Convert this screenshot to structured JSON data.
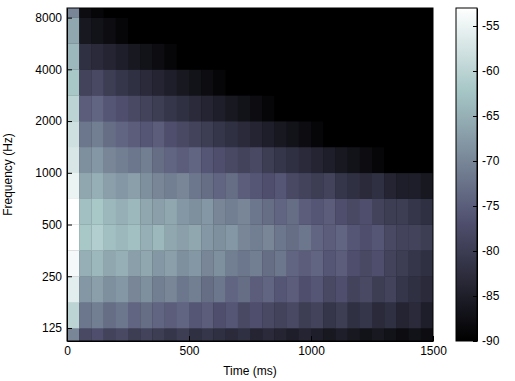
{
  "chart_data": {
    "type": "heatmap",
    "xlabel": "Time (ms)",
    "ylabel": "Frequency (Hz)",
    "x": [
      0,
      50,
      100,
      150,
      200,
      250,
      300,
      350,
      400,
      450,
      500,
      550,
      600,
      650,
      700,
      750,
      800,
      850,
      900,
      950,
      1000,
      1050,
      1100,
      1150,
      1200,
      1250,
      1300,
      1350,
      1400,
      1450,
      1500
    ],
    "y": [
      105,
      125,
      177,
      250,
      354,
      500,
      707,
      1000,
      1414,
      2000,
      2828,
      4000,
      5657,
      8000,
      9100
    ],
    "values": [
      [
        -70,
        -78,
        -77,
        -79,
        -78,
        -80,
        -79,
        -80,
        -81,
        -80,
        -82,
        -81,
        -82,
        -83,
        -82,
        -84,
        -83,
        -84,
        -85,
        -84,
        -85,
        -86,
        -85,
        -86,
        -87,
        -86,
        -87,
        -88,
        -87,
        -88
      ],
      [
        -60,
        -72,
        -71,
        -73,
        -72,
        -74,
        -73,
        -74,
        -75,
        -74,
        -76,
        -75,
        -77,
        -76,
        -78,
        -77,
        -78,
        -79,
        -78,
        -80,
        -79,
        -81,
        -80,
        -82,
        -81,
        -83,
        -82,
        -84,
        -83,
        -85
      ],
      [
        -56,
        -68,
        -67,
        -69,
        -68,
        -70,
        -69,
        -71,
        -70,
        -72,
        -71,
        -73,
        -72,
        -74,
        -73,
        -75,
        -74,
        -76,
        -75,
        -77,
        -76,
        -78,
        -77,
        -79,
        -78,
        -80,
        -79,
        -81,
        -82,
        -83
      ],
      [
        -54,
        -65,
        -64,
        -66,
        -65,
        -67,
        -66,
        -68,
        -67,
        -69,
        -68,
        -70,
        -69,
        -71,
        -72,
        -71,
        -73,
        -72,
        -74,
        -75,
        -74,
        -76,
        -75,
        -77,
        -78,
        -77,
        -79,
        -80,
        -81,
        -82
      ],
      [
        -53,
        -62,
        -61,
        -63,
        -64,
        -63,
        -65,
        -64,
        -66,
        -67,
        -66,
        -68,
        -69,
        -68,
        -70,
        -71,
        -70,
        -72,
        -73,
        -72,
        -74,
        -75,
        -74,
        -76,
        -77,
        -76,
        -78,
        -79,
        -79,
        -80
      ],
      [
        -53,
        -63,
        -62,
        -64,
        -65,
        -64,
        -66,
        -67,
        -66,
        -68,
        -69,
        -68,
        -70,
        -71,
        -70,
        -72,
        -73,
        -74,
        -73,
        -75,
        -76,
        -75,
        -77,
        -78,
        -77,
        -79,
        -80,
        -80,
        -81,
        -82
      ],
      [
        -55,
        -66,
        -65,
        -67,
        -68,
        -67,
        -69,
        -70,
        -71,
        -70,
        -72,
        -73,
        -74,
        -73,
        -75,
        -76,
        -77,
        -76,
        -78,
        -79,
        -80,
        -79,
        -81,
        -82,
        -83,
        -82,
        -84,
        -85,
        -85,
        -86
      ],
      [
        -57,
        -69,
        -68,
        -70,
        -71,
        -72,
        -71,
        -73,
        -74,
        -75,
        -74,
        -76,
        -77,
        -78,
        -79,
        -78,
        -80,
        -81,
        -82,
        -83,
        -84,
        -85,
        -86,
        -87,
        -88,
        -89,
        -90,
        -90,
        -90,
        -90
      ],
      [
        -58,
        -72,
        -71,
        -73,
        -74,
        -75,
        -76,
        -75,
        -77,
        -78,
        -79,
        -80,
        -81,
        -82,
        -83,
        -84,
        -85,
        -86,
        -87,
        -88,
        -89,
        -90,
        -90,
        -90,
        -90,
        -90,
        -90,
        -90,
        -90,
        -90
      ],
      [
        -60,
        -75,
        -74,
        -76,
        -77,
        -78,
        -79,
        -80,
        -81,
        -82,
        -83,
        -84,
        -85,
        -86,
        -87,
        -88,
        -89,
        -90,
        -90,
        -90,
        -90,
        -90,
        -90,
        -90,
        -90,
        -90,
        -90,
        -90,
        -90,
        -90
      ],
      [
        -62,
        -79,
        -78,
        -80,
        -81,
        -82,
        -83,
        -84,
        -85,
        -86,
        -87,
        -88,
        -89,
        -90,
        -90,
        -90,
        -90,
        -90,
        -90,
        -90,
        -90,
        -90,
        -90,
        -90,
        -90,
        -90,
        -90,
        -90,
        -90,
        -90
      ],
      [
        -64,
        -82,
        -83,
        -84,
        -85,
        -86,
        -87,
        -88,
        -89,
        -90,
        -90,
        -90,
        -90,
        -90,
        -90,
        -90,
        -90,
        -90,
        -90,
        -90,
        -90,
        -90,
        -90,
        -90,
        -90,
        -90,
        -90,
        -90,
        -90,
        -90
      ],
      [
        -66,
        -86,
        -87,
        -88,
        -89,
        -90,
        -90,
        -90,
        -90,
        -90,
        -90,
        -90,
        -90,
        -90,
        -90,
        -90,
        -90,
        -90,
        -90,
        -90,
        -90,
        -90,
        -90,
        -90,
        -90,
        -90,
        -90,
        -90,
        -90,
        -90
      ],
      [
        -70,
        -88,
        -89,
        -90,
        -90,
        -90,
        -90,
        -90,
        -90,
        -90,
        -90,
        -90,
        -90,
        -90,
        -90,
        -90,
        -90,
        -90,
        -90,
        -90,
        -90,
        -90,
        -90,
        -90,
        -90,
        -90,
        -90,
        -90,
        -90,
        -90
      ]
    ],
    "xlim": [
      0,
      1500
    ],
    "xticks": [
      0,
      500,
      1000,
      1500
    ],
    "ylim": [
      105,
      9100
    ],
    "yticks": [
      125,
      250,
      500,
      1000,
      2000,
      4000,
      8000
    ],
    "log": "y",
    "colorbar": {
      "range": [
        -90,
        -53
      ],
      "ticks": [
        -90,
        -85,
        -80,
        -75,
        -70,
        -65,
        -60,
        -55
      ]
    }
  }
}
